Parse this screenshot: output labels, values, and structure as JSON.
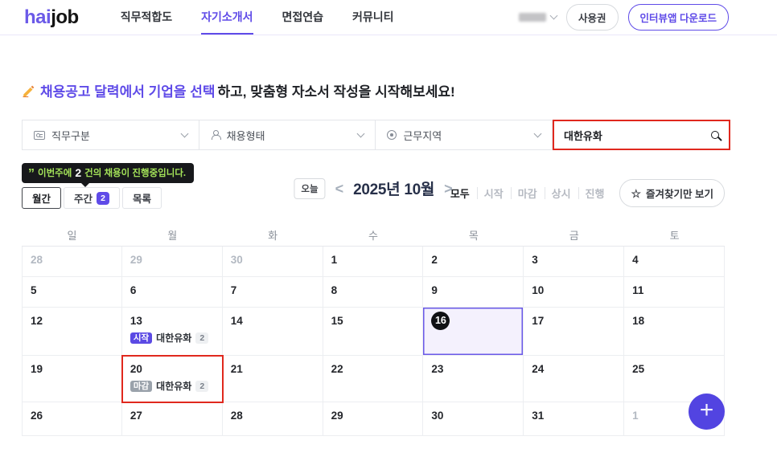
{
  "header": {
    "logo_hai": "hai",
    "logo_job": "job",
    "nav": [
      {
        "label": "직무적합도",
        "active": false
      },
      {
        "label": "자기소개서",
        "active": true
      },
      {
        "label": "면접연습",
        "active": false
      },
      {
        "label": "커뮤니티",
        "active": false
      }
    ],
    "license_button": "사용권",
    "download_button": "인터뷰앱 다운로드"
  },
  "headline": {
    "icon": "writing-hand-icon",
    "highlight": "채용공고 달력에서 기업을 선택",
    "rest": "하고, 맞춤형 자소서 작성을 시작해보세요!"
  },
  "filters": {
    "dropdowns": [
      {
        "label": "직무구분",
        "icon": "id-card-icon"
      },
      {
        "label": "채용형태",
        "icon": "person-icon"
      },
      {
        "label": "근무지역",
        "icon": "location-icon"
      }
    ],
    "search": {
      "value": "대한유화",
      "icon": "search-icon"
    }
  },
  "tooltip": {
    "quote_glyph": "”",
    "text_before": "이번주에",
    "count": "2",
    "text_after": "건의 채용이 진행중입니다."
  },
  "view_toggle": {
    "monthly": "월간",
    "weekly": "주간",
    "weekly_badge": "2",
    "list": "목록"
  },
  "calendar_nav": {
    "today": "오늘",
    "prev": "<",
    "title": "2025년 10월",
    "next": ">"
  },
  "status_filters": {
    "items": [
      {
        "label": "모두",
        "active": true
      },
      {
        "label": "시작",
        "active": false
      },
      {
        "label": "마감",
        "active": false
      },
      {
        "label": "상시",
        "active": false
      },
      {
        "label": "진행",
        "active": false
      }
    ]
  },
  "favorites": {
    "star": "☆",
    "label": "즐겨찾기만 보기"
  },
  "calendar": {
    "day_headers": [
      "일",
      "월",
      "화",
      "수",
      "목",
      "금",
      "토"
    ],
    "weeks": [
      [
        {
          "day": "28",
          "muted": true
        },
        {
          "day": "29",
          "muted": true
        },
        {
          "day": "30",
          "muted": true
        },
        {
          "day": "1"
        },
        {
          "day": "2"
        },
        {
          "day": "3"
        },
        {
          "day": "4"
        }
      ],
      [
        {
          "day": "5"
        },
        {
          "day": "6"
        },
        {
          "day": "7"
        },
        {
          "day": "8"
        },
        {
          "day": "9"
        },
        {
          "day": "10"
        },
        {
          "day": "11"
        }
      ],
      [
        {
          "day": "12"
        },
        {
          "day": "13",
          "event": {
            "badge": "시작",
            "type": "start",
            "company": "대한유화",
            "count": "2"
          }
        },
        {
          "day": "14"
        },
        {
          "day": "15"
        },
        {
          "day": "16",
          "today": true,
          "selected": true
        },
        {
          "day": "17"
        },
        {
          "day": "18"
        }
      ],
      [
        {
          "day": "19"
        },
        {
          "day": "20",
          "annotated": true,
          "event": {
            "badge": "마감",
            "type": "end",
            "company": "대한유화",
            "count": "2"
          }
        },
        {
          "day": "21"
        },
        {
          "day": "22"
        },
        {
          "day": "23"
        },
        {
          "day": "24"
        },
        {
          "day": "25"
        }
      ],
      [
        {
          "day": "26"
        },
        {
          "day": "27"
        },
        {
          "day": "28"
        },
        {
          "day": "29"
        },
        {
          "day": "30"
        },
        {
          "day": "31"
        },
        {
          "day": "1",
          "muted": true
        }
      ]
    ]
  },
  "fab": {
    "label": "+"
  },
  "colors": {
    "brand_purple": "#5f4be8",
    "annotation_red": "#e0281e",
    "tooltip_green": "#a4e359",
    "start_badge": "#5b4ae4",
    "end_badge": "#9aa2ab",
    "today_circle": "#101114",
    "selected_cell_bg": "#f4f1fd"
  }
}
